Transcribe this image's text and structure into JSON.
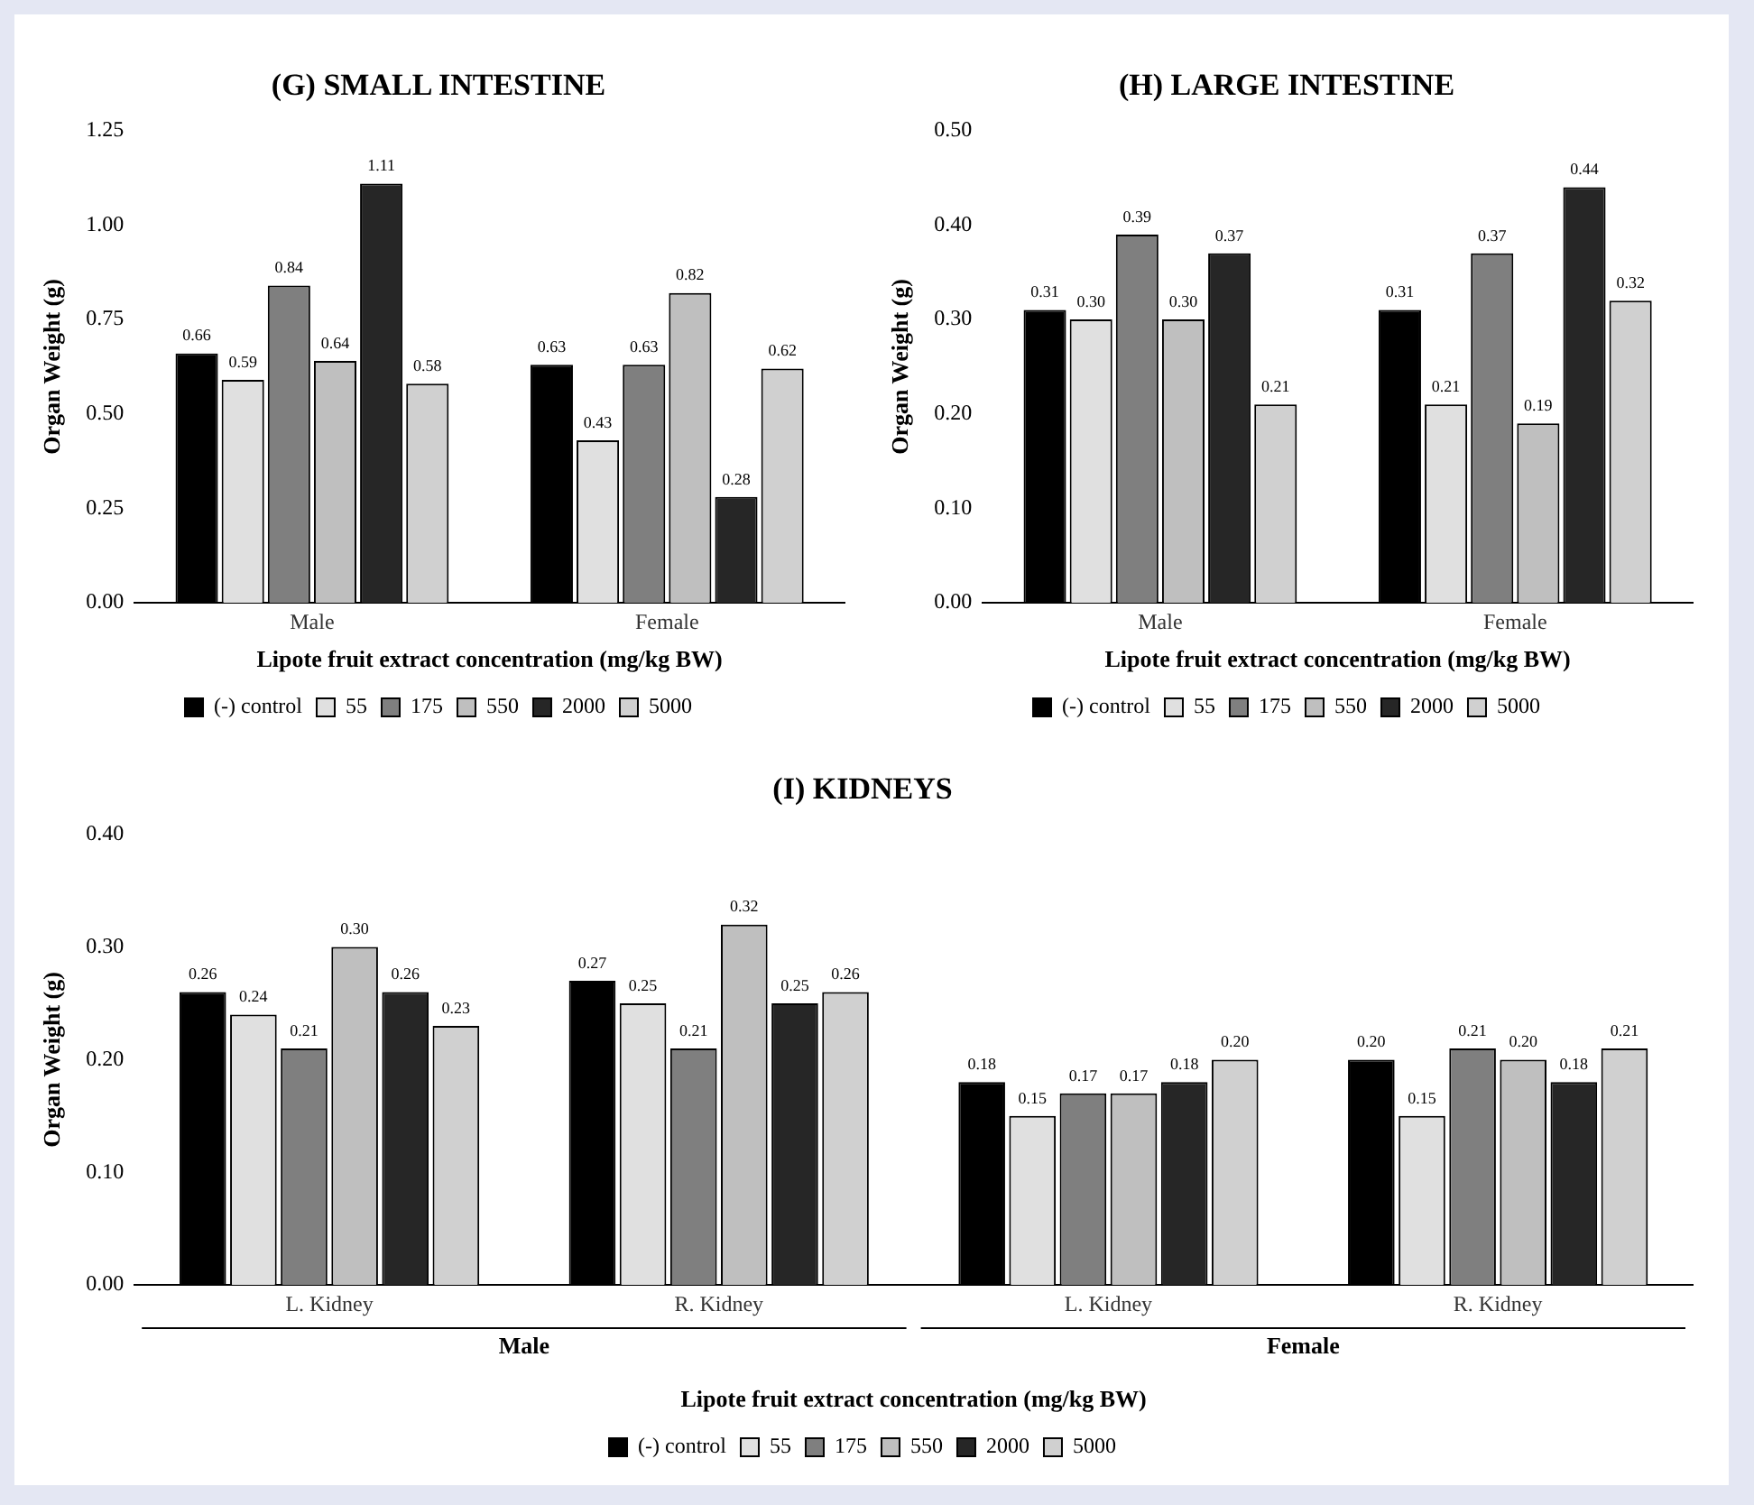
{
  "chart_data": [
    {
      "type": "bar",
      "title": "(G) SMALL INTESTINE",
      "xlabel": "Lipote fruit extract concentration (mg/kg BW)",
      "ylabel": "Organ Weight (g)",
      "categories": [
        "Male",
        "Female"
      ],
      "series": [
        {
          "name": "(-) control",
          "color": "#000000",
          "values": [
            0.66,
            0.63
          ],
          "value_labels": [
            "0.66",
            "0.63"
          ]
        },
        {
          "name": "55",
          "color": "#e0e0e0",
          "values": [
            0.59,
            0.43
          ],
          "value_labels": [
            "0.59",
            "0.43"
          ]
        },
        {
          "name": "175",
          "color": "#7f7f7f",
          "values": [
            0.84,
            0.63
          ],
          "value_labels": [
            "0.84",
            "0.63"
          ]
        },
        {
          "name": "550",
          "color": "#bfbfbf",
          "values": [
            0.64,
            0.82
          ],
          "value_labels": [
            "0.64",
            "0.82"
          ]
        },
        {
          "name": "2000",
          "color": "#262626",
          "values": [
            1.11,
            0.28
          ],
          "value_labels": [
            "1.11",
            "0.28"
          ]
        },
        {
          "name": "5000",
          "color": "#d0d0d0",
          "values": [
            0.58,
            0.62
          ],
          "value_labels": [
            "0.58",
            "0.62"
          ]
        }
      ],
      "ylim": [
        0,
        1.25
      ],
      "yticks": [
        {
          "value": 0,
          "label": "0.00"
        },
        {
          "value": 0.25,
          "label": "0.25"
        },
        {
          "value": 0.5,
          "label": "0.50"
        },
        {
          "value": 0.75,
          "label": "0.75"
        },
        {
          "value": 1,
          "label": "1.00"
        },
        {
          "value": 1.25,
          "label": "1.25"
        }
      ],
      "grid": false,
      "legend": "bottom"
    },
    {
      "type": "bar",
      "title": "(H) LARGE INTESTINE",
      "xlabel": "Lipote fruit extract concentration (mg/kg BW)",
      "ylabel": "Organ Weight (g)",
      "categories": [
        "Male",
        "Female"
      ],
      "series": [
        {
          "name": "(-) control",
          "color": "#000000",
          "values": [
            0.31,
            0.31
          ],
          "value_labels": [
            "0.31",
            "0.31"
          ]
        },
        {
          "name": "55",
          "color": "#e0e0e0",
          "values": [
            0.3,
            0.21
          ],
          "value_labels": [
            "0.30",
            "0.21"
          ]
        },
        {
          "name": "175",
          "color": "#7f7f7f",
          "values": [
            0.39,
            0.37
          ],
          "value_labels": [
            "0.39",
            "0.37"
          ]
        },
        {
          "name": "550",
          "color": "#bfbfbf",
          "values": [
            0.3,
            0.19
          ],
          "value_labels": [
            "0.30",
            "0.19"
          ]
        },
        {
          "name": "2000",
          "color": "#262626",
          "values": [
            0.37,
            0.44
          ],
          "value_labels": [
            "0.37",
            "0.44"
          ]
        },
        {
          "name": "5000",
          "color": "#d0d0d0",
          "values": [
            0.21,
            0.32
          ],
          "value_labels": [
            "0.21",
            "0.32"
          ]
        }
      ],
      "ylim": [
        0,
        0.5
      ],
      "yticks": [
        {
          "value": 0,
          "label": "0.00"
        },
        {
          "value": 0.1,
          "label": "0.10"
        },
        {
          "value": 0.2,
          "label": "0.20"
        },
        {
          "value": 0.3,
          "label": "0.30"
        },
        {
          "value": 0.4,
          "label": "0.40"
        },
        {
          "value": 0.5,
          "label": "0.50"
        }
      ],
      "grid": false,
      "legend": "bottom"
    },
    {
      "type": "bar",
      "title": "(I) KIDNEYS",
      "xlabel": "Lipote fruit extract concentration (mg/kg BW)",
      "ylabel": "Organ Weight (g)",
      "categories": [
        "L. Kidney",
        "R. Kidney",
        "L. Kidney",
        "R. Kidney"
      ],
      "annotations": [
        "Male",
        "Female"
      ],
      "series": [
        {
          "name": "(-) control",
          "color": "#000000",
          "values": [
            0.26,
            0.27,
            0.18,
            0.2
          ],
          "value_labels": [
            "0.26",
            "0.27",
            "0.18",
            "0.20"
          ]
        },
        {
          "name": "55",
          "color": "#e0e0e0",
          "values": [
            0.24,
            0.25,
            0.15,
            0.15
          ],
          "value_labels": [
            "0.24",
            "0.25",
            "0.15",
            "0.15"
          ]
        },
        {
          "name": "175",
          "color": "#7f7f7f",
          "values": [
            0.21,
            0.21,
            0.17,
            0.21
          ],
          "value_labels": [
            "0.21",
            "0.21",
            "0.17",
            "0.21"
          ]
        },
        {
          "name": "550",
          "color": "#bfbfbf",
          "values": [
            0.3,
            0.32,
            0.17,
            0.2
          ],
          "value_labels": [
            "0.30",
            "0.32",
            "0.17",
            "0.20"
          ]
        },
        {
          "name": "2000",
          "color": "#262626",
          "values": [
            0.26,
            0.25,
            0.18,
            0.18
          ],
          "value_labels": [
            "0.26",
            "0.25",
            "0.18",
            "0.18"
          ]
        },
        {
          "name": "5000",
          "color": "#d0d0d0",
          "values": [
            0.23,
            0.26,
            0.2,
            0.21
          ],
          "value_labels": [
            "0.23",
            "0.26",
            "0.20",
            "0.21"
          ]
        }
      ],
      "ylim": [
        0,
        0.4
      ],
      "yticks": [
        {
          "value": 0,
          "label": "0.00"
        },
        {
          "value": 0.1,
          "label": "0.10"
        },
        {
          "value": 0.2,
          "label": "0.20"
        },
        {
          "value": 0.3,
          "label": "0.30"
        },
        {
          "value": 0.4,
          "label": "0.40"
        }
      ],
      "grid": false,
      "legend": "bottom"
    }
  ]
}
